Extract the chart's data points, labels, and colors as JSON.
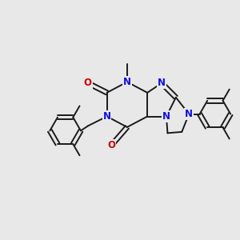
{
  "bg_color": "#e8e8e8",
  "bond_color": "#1a1a1a",
  "N_color": "#1010dd",
  "O_color": "#cc0000",
  "bond_width": 1.4,
  "figsize": [
    3.0,
    3.0
  ],
  "dpi": 100,
  "xlim": [
    0,
    10
  ],
  "ylim": [
    0,
    10
  ]
}
